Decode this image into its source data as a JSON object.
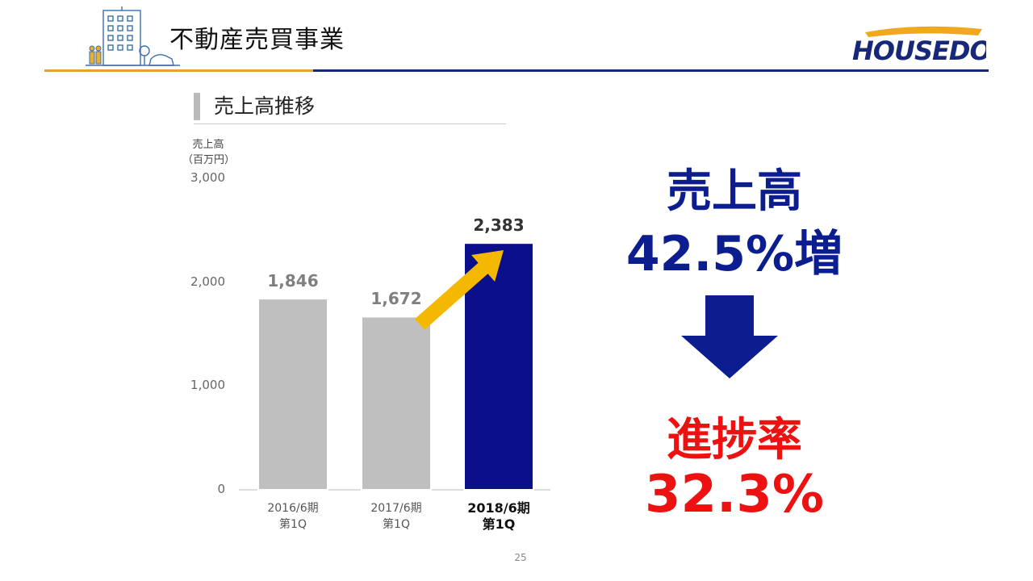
{
  "header": {
    "title": "不動産売買事業",
    "logo_text": "HOUSEDO"
  },
  "section": {
    "title": "売上高推移"
  },
  "chart_data": {
    "type": "bar",
    "ylabel_line1": "売上高",
    "ylabel_line2": "（百万円）",
    "ylim": [
      0,
      3000
    ],
    "yticks": [
      "3,000",
      "2,000",
      "1,000",
      "0"
    ],
    "categories": [
      {
        "line1": "2016/6期",
        "line2": "第1Q"
      },
      {
        "line1": "2017/6期",
        "line2": "第1Q"
      },
      {
        "line1": "2018/6期",
        "line2": "第1Q"
      }
    ],
    "values": [
      1846,
      1672,
      2383
    ],
    "value_labels": [
      "1,846",
      "1,672",
      "2,383"
    ],
    "colors": [
      "#bfbfbf",
      "#bfbfbf",
      "#0a0f8a"
    ],
    "highlight_index": 2,
    "arrow_color": "#f5b800"
  },
  "callout": {
    "line1": "売上高",
    "line2": "42.5%増",
    "line3": "進捗率",
    "line4": "32.3%",
    "arrow_color": "#0b1d8f"
  },
  "page_number": "25"
}
